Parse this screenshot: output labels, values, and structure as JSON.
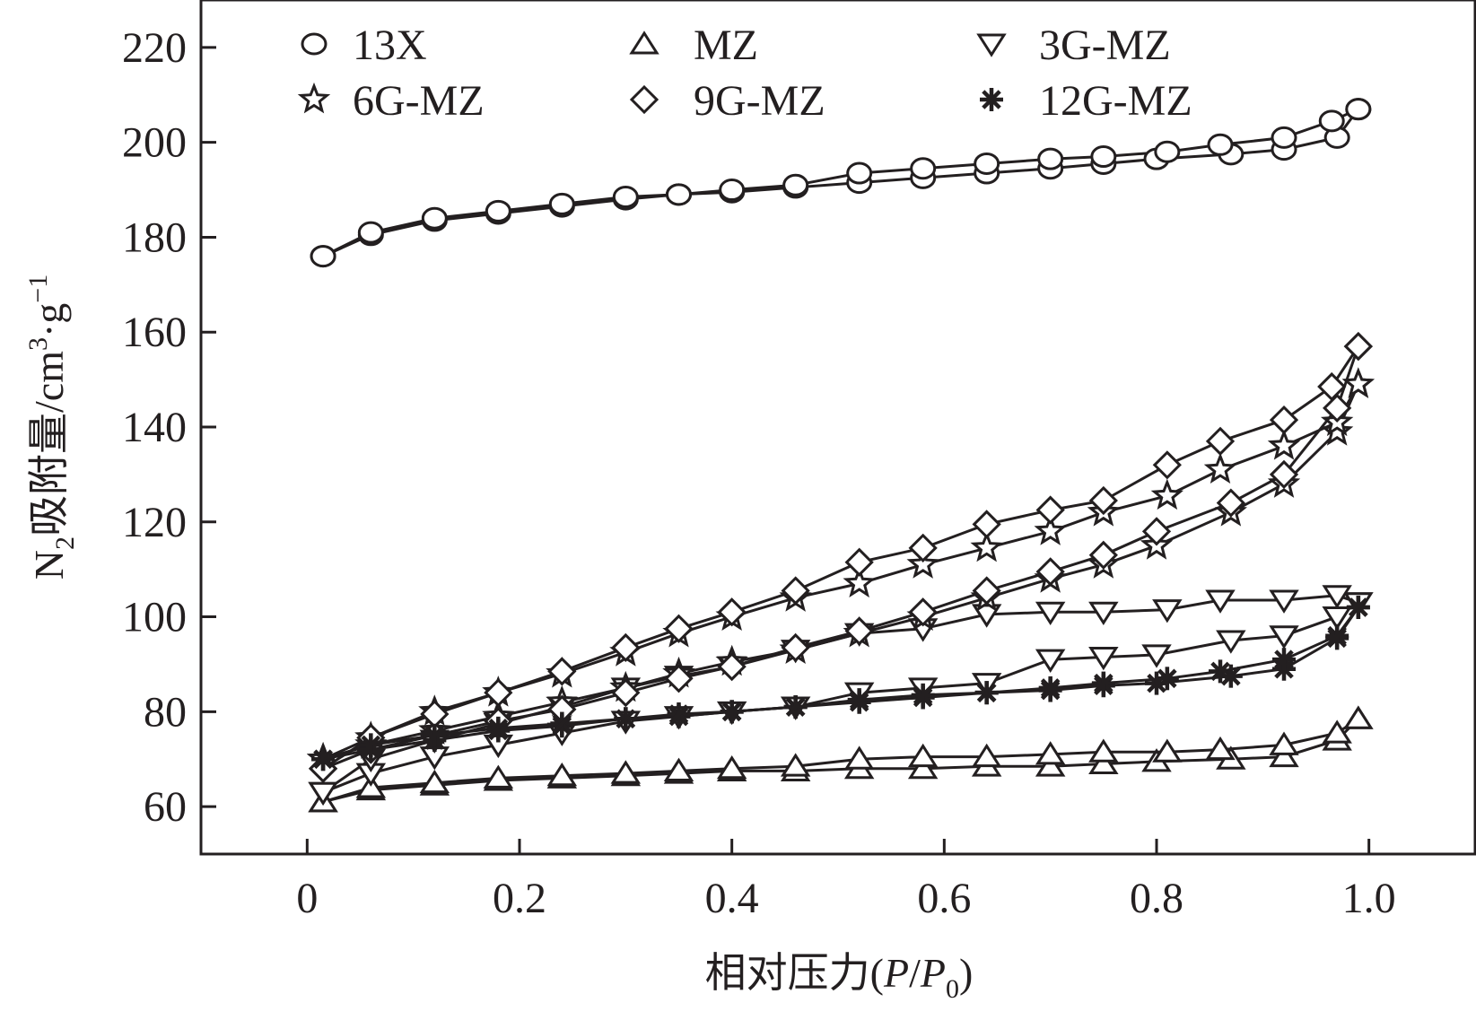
{
  "chart_data": {
    "type": "line",
    "title": "",
    "xlabel": "相对压力(P/P0)",
    "xlabel_parts": {
      "prefix": "相对压力(",
      "p1": "P",
      "slash": "/",
      "p2": "P",
      "sub": "0",
      "suffix": ")"
    },
    "ylabel": "N2吸附量/cm3·g−1",
    "ylabel_parts": {
      "n": "N",
      "sub": "2",
      "main": "吸附量/cm",
      "sup3": "3",
      "dot_g": "·g",
      "sup_neg1": "−1"
    },
    "xlim": [
      -0.1,
      1.1
    ],
    "ylim": [
      50,
      230
    ],
    "xticks": [
      0,
      0.2,
      0.4,
      0.6,
      0.8,
      1.0
    ],
    "xtick_labels": [
      "0",
      "0.2",
      "0.4",
      "0.6",
      "0.8",
      "1.0"
    ],
    "yticks": [
      60,
      80,
      100,
      120,
      140,
      160,
      180,
      200,
      220
    ],
    "ytick_labels": [
      "60",
      "80",
      "100",
      "120",
      "140",
      "160",
      "180",
      "200",
      "220"
    ],
    "legend_position": "top",
    "series": [
      {
        "name": "13X",
        "marker": "circle",
        "adsorption": {
          "x": [
            0.015,
            0.06,
            0.12,
            0.18,
            0.24,
            0.3,
            0.35,
            0.4,
            0.46,
            0.52,
            0.58,
            0.64,
            0.7,
            0.75,
            0.8,
            0.87,
            0.92,
            0.97,
            0.99
          ],
          "y": [
            176,
            180.5,
            183.5,
            185,
            186.5,
            188,
            189,
            189.5,
            190.5,
            191.5,
            192.5,
            193.5,
            194.5,
            195.5,
            196.5,
            197.5,
            198.5,
            201,
            207
          ]
        },
        "desorption": {
          "x": [
            0.99,
            0.965,
            0.92,
            0.86,
            0.81,
            0.75,
            0.7,
            0.64,
            0.58,
            0.52,
            0.46,
            0.4,
            0.35,
            0.3,
            0.24,
            0.18,
            0.12,
            0.06,
            0.015
          ],
          "y": [
            207,
            204.5,
            201,
            199.5,
            198,
            197,
            196.5,
            195.5,
            194.5,
            193.5,
            191,
            190,
            189,
            188.5,
            187,
            185.5,
            184,
            181,
            176
          ]
        }
      },
      {
        "name": "MZ",
        "marker": "triangle-up",
        "adsorption": {
          "x": [
            0.015,
            0.06,
            0.12,
            0.18,
            0.24,
            0.3,
            0.35,
            0.4,
            0.46,
            0.52,
            0.58,
            0.64,
            0.7,
            0.75,
            0.8,
            0.87,
            0.92,
            0.97,
            0.99
          ],
          "y": [
            61,
            63.5,
            64.5,
            65.5,
            66,
            66.5,
            67,
            67.5,
            67.5,
            68,
            68,
            68.5,
            68.5,
            69,
            69.5,
            70,
            70.5,
            74,
            78.5
          ]
        },
        "desorption": {
          "x": [
            0.99,
            0.97,
            0.92,
            0.86,
            0.81,
            0.75,
            0.7,
            0.64,
            0.58,
            0.52,
            0.46,
            0.4,
            0.35,
            0.3,
            0.24,
            0.18,
            0.12,
            0.06,
            0.015
          ],
          "y": [
            78.5,
            75.5,
            73,
            72,
            71.5,
            71.5,
            71,
            70.5,
            70.5,
            70,
            68.5,
            68,
            67.5,
            67,
            66.5,
            66,
            65,
            64,
            61
          ]
        }
      },
      {
        "name": "3G-MZ",
        "marker": "triangle-down",
        "adsorption": {
          "x": [
            0.015,
            0.06,
            0.12,
            0.18,
            0.24,
            0.3,
            0.35,
            0.4,
            0.46,
            0.52,
            0.58,
            0.64,
            0.7,
            0.75,
            0.8,
            0.87,
            0.92,
            0.97,
            0.99
          ],
          "y": [
            63,
            67,
            70.5,
            73,
            75.5,
            78,
            79,
            80,
            81,
            84,
            85,
            86,
            91,
            91.5,
            92,
            95,
            96,
            100,
            103
          ]
        },
        "desorption": {
          "x": [
            0.99,
            0.97,
            0.92,
            0.86,
            0.81,
            0.75,
            0.7,
            0.64,
            0.58,
            0.52,
            0.46,
            0.4,
            0.35,
            0.3,
            0.24,
            0.18,
            0.12,
            0.06,
            0.015
          ],
          "y": [
            103,
            104.5,
            103.5,
            103.5,
            101.5,
            101,
            101,
            100.5,
            97.5,
            96.5,
            93,
            89.5,
            87.5,
            85,
            81,
            77.5,
            74,
            70,
            63
          ]
        }
      },
      {
        "name": "6G-MZ",
        "marker": "star",
        "adsorption": {
          "x": [
            0.015,
            0.06,
            0.12,
            0.18,
            0.24,
            0.3,
            0.35,
            0.4,
            0.46,
            0.52,
            0.58,
            0.64,
            0.7,
            0.75,
            0.8,
            0.87,
            0.92,
            0.97,
            0.99
          ],
          "y": [
            70,
            73,
            76,
            79,
            82,
            85,
            88,
            90.5,
            93,
            96.5,
            100,
            104,
            108,
            111,
            115,
            122,
            128,
            139,
            149
          ]
        },
        "desorption": {
          "x": [
            0.99,
            0.97,
            0.92,
            0.86,
            0.81,
            0.75,
            0.7,
            0.64,
            0.58,
            0.52,
            0.46,
            0.4,
            0.35,
            0.3,
            0.24,
            0.18,
            0.12,
            0.06,
            0.015
          ],
          "y": [
            149,
            141,
            136,
            131,
            125.5,
            122,
            118,
            114.5,
            111,
            107,
            104,
            100,
            96.5,
            92.5,
            88,
            84,
            80,
            74.5,
            70
          ]
        }
      },
      {
        "name": "9G-MZ",
        "marker": "diamond",
        "adsorption": {
          "x": [
            0.015,
            0.06,
            0.12,
            0.18,
            0.24,
            0.3,
            0.35,
            0.4,
            0.46,
            0.52,
            0.58,
            0.64,
            0.7,
            0.75,
            0.8,
            0.87,
            0.92,
            0.97,
            0.99
          ],
          "y": [
            68,
            72,
            75,
            78,
            80.5,
            84,
            87,
            89.5,
            93.5,
            97,
            101,
            105.5,
            109.5,
            113,
            118,
            124,
            130,
            144,
            157
          ]
        },
        "desorption": {
          "x": [
            0.99,
            0.965,
            0.92,
            0.86,
            0.81,
            0.75,
            0.7,
            0.64,
            0.58,
            0.52,
            0.46,
            0.4,
            0.35,
            0.3,
            0.24,
            0.18,
            0.12,
            0.06,
            0.015
          ],
          "y": [
            157,
            148.5,
            141.5,
            137,
            132,
            124.5,
            122.5,
            119.5,
            114.5,
            111.5,
            105.5,
            101,
            97.5,
            93.5,
            88.5,
            84,
            79.5,
            74.5,
            68
          ]
        }
      },
      {
        "name": "12G-MZ",
        "marker": "asterisk",
        "adsorption": {
          "x": [
            0.015,
            0.06,
            0.12,
            0.18,
            0.24,
            0.3,
            0.35,
            0.4,
            0.46,
            0.52,
            0.58,
            0.64,
            0.7,
            0.75,
            0.8,
            0.87,
            0.92,
            0.97,
            0.99
          ],
          "y": [
            70,
            72,
            74,
            76,
            77,
            78.5,
            79,
            80,
            81,
            82,
            83,
            84,
            84.5,
            85.5,
            86,
            87.5,
            89,
            95.5,
            102
          ]
        },
        "desorption": {
          "x": [
            0.99,
            0.97,
            0.92,
            0.86,
            0.81,
            0.75,
            0.7,
            0.64,
            0.58,
            0.52,
            0.46,
            0.4,
            0.35,
            0.3,
            0.24,
            0.18,
            0.12,
            0.06,
            0.015
          ],
          "y": [
            102,
            96,
            91,
            88.5,
            87,
            86,
            85,
            84,
            83.5,
            82.5,
            81,
            80,
            79.5,
            78.5,
            77.5,
            76.5,
            75,
            73,
            70
          ]
        }
      }
    ]
  }
}
